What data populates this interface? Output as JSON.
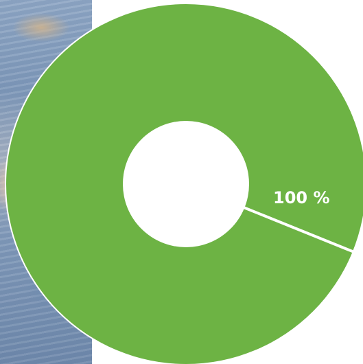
{
  "chart_data": {
    "type": "pie",
    "variant": "donut",
    "title": "",
    "slices": [
      {
        "value": 100,
        "label": "100 %",
        "color": "#6db344"
      }
    ],
    "separator_color": "#ffffff"
  }
}
